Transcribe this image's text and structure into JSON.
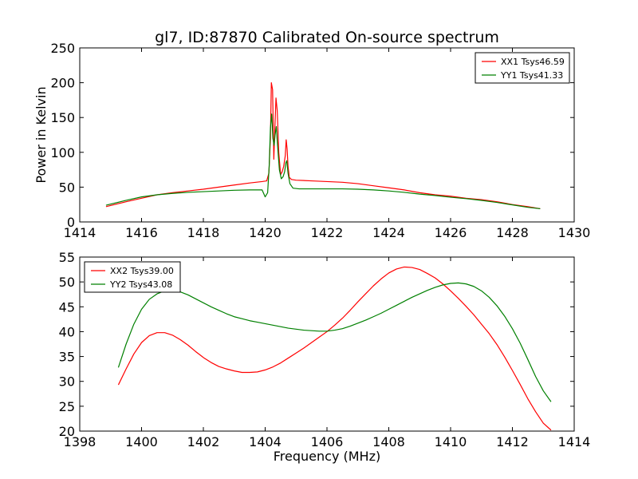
{
  "title": "gl7, ID:87870 Calibrated On-source spectrum",
  "colors": {
    "xx": "#ff0000",
    "yy": "#008000"
  },
  "chart_data": [
    {
      "type": "line",
      "xlabel": "",
      "ylabel": "Power in Kelvin",
      "xlim": [
        1414,
        1430
      ],
      "ylim": [
        0,
        250
      ],
      "xticks": [
        "1414",
        "1416",
        "1418",
        "1420",
        "1422",
        "1424",
        "1426",
        "1428",
        "1430"
      ],
      "yticks": [
        "0",
        "50",
        "100",
        "150",
        "200",
        "250"
      ],
      "legend_position": "upper right",
      "grid": false,
      "series": [
        {
          "name": "XX1 Tsys46.59",
          "color": "#ff0000",
          "x": [
            1414.85,
            1415.5,
            1416,
            1416.5,
            1417,
            1417.5,
            1418,
            1418.5,
            1419,
            1419.5,
            1419.9,
            1420.05,
            1420.12,
            1420.17,
            1420.2,
            1420.24,
            1420.28,
            1420.31,
            1420.35,
            1420.39,
            1420.44,
            1420.5,
            1420.55,
            1420.6,
            1420.65,
            1420.68,
            1420.71,
            1420.74,
            1420.78,
            1420.85,
            1421,
            1421.5,
            1422,
            1422.5,
            1423,
            1423.5,
            1424,
            1424.5,
            1425,
            1425.5,
            1426,
            1426.5,
            1427,
            1427.5,
            1428,
            1428.5,
            1428.9
          ],
          "y": [
            22,
            29,
            34,
            39,
            42,
            44.5,
            47,
            50,
            53,
            56,
            58,
            59,
            70,
            120,
            200,
            190,
            90,
            130,
            178,
            160,
            100,
            68,
            72,
            80,
            95,
            118,
            105,
            80,
            64,
            61,
            60,
            59,
            58,
            57,
            55,
            52,
            49,
            46,
            42,
            39,
            37,
            34,
            32,
            29,
            25,
            22,
            19
          ]
        },
        {
          "name": "YY1 Tsys41.33",
          "color": "#008000",
          "x": [
            1414.85,
            1415.5,
            1416,
            1416.5,
            1417,
            1417.5,
            1418,
            1418.5,
            1419,
            1419.5,
            1419.9,
            1420.0,
            1420.08,
            1420.13,
            1420.17,
            1420.21,
            1420.25,
            1420.29,
            1420.32,
            1420.36,
            1420.4,
            1420.46,
            1420.52,
            1420.58,
            1420.63,
            1420.67,
            1420.7,
            1420.74,
            1420.8,
            1420.9,
            1421.1,
            1421.5,
            1422,
            1422.5,
            1423,
            1423.5,
            1424,
            1424.5,
            1425,
            1425.5,
            1426,
            1426.5,
            1427,
            1427.5,
            1428,
            1428.5,
            1428.9
          ],
          "y": [
            24,
            31,
            36,
            39,
            41,
            42.5,
            43.5,
            44.5,
            45.5,
            46,
            46,
            36,
            42,
            80,
            135,
            155,
            120,
            110,
            125,
            137,
            110,
            75,
            62,
            65,
            72,
            85,
            88,
            70,
            55,
            48.5,
            47.5,
            47.5,
            47.5,
            47.5,
            47,
            46,
            44.5,
            42.5,
            40,
            38,
            35.5,
            33.5,
            31,
            28,
            24.5,
            21,
            19
          ]
        }
      ]
    },
    {
      "type": "line",
      "xlabel": "Frequency (MHz)",
      "ylabel": "",
      "xlim": [
        1398,
        1414
      ],
      "ylim": [
        20,
        55
      ],
      "xticks": [
        "1398",
        "1400",
        "1402",
        "1404",
        "1406",
        "1408",
        "1410",
        "1412",
        "1414"
      ],
      "yticks": [
        "20",
        "25",
        "30",
        "35",
        "40",
        "45",
        "50",
        "55"
      ],
      "legend_position": "upper left",
      "grid": false,
      "series": [
        {
          "name": "XX2 Tsys39.00",
          "color": "#ff0000",
          "x": [
            1399.25,
            1399.5,
            1399.75,
            1400,
            1400.25,
            1400.5,
            1400.75,
            1401,
            1401.25,
            1401.5,
            1401.75,
            1402,
            1402.25,
            1402.5,
            1402.75,
            1403,
            1403.25,
            1403.5,
            1403.75,
            1404,
            1404.25,
            1404.5,
            1404.75,
            1405,
            1405.25,
            1405.5,
            1405.75,
            1406,
            1406.25,
            1406.5,
            1406.75,
            1407,
            1407.25,
            1407.5,
            1407.75,
            1408,
            1408.25,
            1408.5,
            1408.75,
            1409,
            1409.25,
            1409.5,
            1409.75,
            1410,
            1410.25,
            1410.5,
            1410.75,
            1411,
            1411.25,
            1411.5,
            1411.75,
            1412,
            1412.25,
            1412.5,
            1412.75,
            1413,
            1413.25
          ],
          "y": [
            29.3,
            32.5,
            35.5,
            37.8,
            39.2,
            39.8,
            39.8,
            39.3,
            38.4,
            37.3,
            36,
            34.8,
            33.8,
            33,
            32.5,
            32.1,
            31.8,
            31.8,
            31.9,
            32.3,
            32.9,
            33.7,
            34.7,
            35.7,
            36.7,
            37.8,
            38.9,
            40,
            41.3,
            42.7,
            44.3,
            46,
            47.6,
            49.2,
            50.6,
            51.8,
            52.6,
            53,
            52.9,
            52.5,
            51.7,
            50.8,
            49.6,
            48.2,
            46.7,
            45.1,
            43.4,
            41.5,
            39.6,
            37.4,
            34.9,
            32.2,
            29.4,
            26.5,
            23.9,
            21.6,
            20.2
          ]
        },
        {
          "name": "YY2 Tsys43.08",
          "color": "#008000",
          "x": [
            1399.25,
            1399.5,
            1399.75,
            1400,
            1400.25,
            1400.5,
            1400.75,
            1401,
            1401.25,
            1401.5,
            1401.75,
            1402,
            1402.25,
            1402.5,
            1402.75,
            1403,
            1403.25,
            1403.5,
            1403.75,
            1404,
            1404.25,
            1404.5,
            1404.75,
            1405,
            1405.25,
            1405.5,
            1405.75,
            1406,
            1406.25,
            1406.5,
            1406.75,
            1407,
            1407.25,
            1407.5,
            1407.75,
            1408,
            1408.25,
            1408.5,
            1408.75,
            1409,
            1409.25,
            1409.5,
            1409.75,
            1410,
            1410.25,
            1410.5,
            1410.75,
            1411,
            1411.25,
            1411.5,
            1411.75,
            1412,
            1412.25,
            1412.5,
            1412.75,
            1413,
            1413.25
          ],
          "y": [
            32.8,
            37.5,
            41.5,
            44.5,
            46.5,
            47.6,
            48.2,
            48.3,
            48,
            47.4,
            46.6,
            45.8,
            45,
            44.3,
            43.6,
            43,
            42.6,
            42.2,
            41.9,
            41.6,
            41.3,
            41,
            40.7,
            40.5,
            40.3,
            40.2,
            40.1,
            40.1,
            40.3,
            40.6,
            41.1,
            41.7,
            42.3,
            43,
            43.7,
            44.5,
            45.3,
            46.1,
            46.9,
            47.6,
            48.3,
            48.9,
            49.4,
            49.7,
            49.8,
            49.6,
            49.1,
            48.2,
            46.9,
            45.2,
            43.1,
            40.6,
            37.7,
            34.4,
            31,
            28.1,
            25.9
          ]
        }
      ]
    }
  ]
}
